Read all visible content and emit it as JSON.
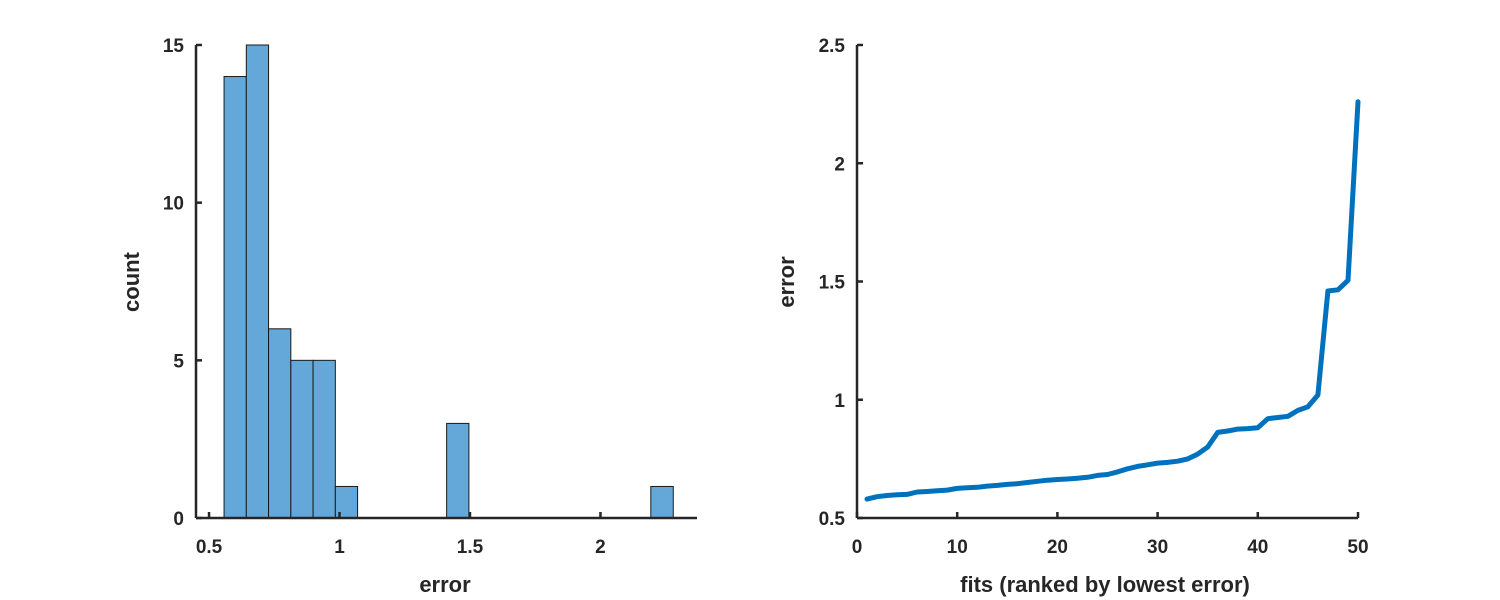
{
  "chart_data": [
    {
      "type": "bar",
      "subtype": "histogram",
      "xlabel": "error",
      "ylabel": "count",
      "xlim": [
        0.45,
        2.37
      ],
      "ylim": [
        0,
        15
      ],
      "xticks": [
        0.5,
        1,
        1.5,
        2
      ],
      "xtick_labels": [
        "0.5",
        "1",
        "1.5",
        "2"
      ],
      "yticks": [
        0,
        5,
        10,
        15
      ],
      "ytick_labels": [
        "0",
        "5",
        "10",
        "15"
      ],
      "bin_width": 0.0853,
      "bins": [
        {
          "start": 0.5575,
          "end": 0.6428,
          "count": 14
        },
        {
          "start": 0.6428,
          "end": 0.7281,
          "count": 15
        },
        {
          "start": 0.7281,
          "end": 0.8134,
          "count": 6
        },
        {
          "start": 0.8134,
          "end": 0.8987,
          "count": 5
        },
        {
          "start": 0.8987,
          "end": 0.984,
          "count": 5
        },
        {
          "start": 0.984,
          "end": 1.0693,
          "count": 1
        },
        {
          "start": 1.4105,
          "end": 1.4958,
          "count": 3
        },
        {
          "start": 2.193,
          "end": 2.279,
          "count": 1
        }
      ],
      "bar_color": "#63a8d8",
      "grid": false
    },
    {
      "type": "line",
      "xlabel": "fits (ranked by lowest error)",
      "ylabel": "error",
      "xlim": [
        0,
        50
      ],
      "ylim": [
        0.5,
        2.5
      ],
      "xticks": [
        0,
        10,
        20,
        30,
        40,
        50
      ],
      "xtick_labels": [
        "0",
        "10",
        "20",
        "30",
        "40",
        "50"
      ],
      "yticks": [
        0.5,
        1,
        1.5,
        2,
        2.5
      ],
      "ytick_labels": [
        "0.5",
        "1",
        "1.5",
        "2",
        "2.5"
      ],
      "series": [
        {
          "color": "#0072bd",
          "x": [
            1,
            2,
            3,
            4,
            5,
            6,
            7,
            8,
            9,
            10,
            11,
            12,
            13,
            14,
            15,
            16,
            17,
            18,
            19,
            20,
            21,
            22,
            23,
            24,
            25,
            26,
            27,
            28,
            29,
            30,
            31,
            32,
            33,
            34,
            35,
            36,
            37,
            38,
            39,
            40,
            41,
            42,
            43,
            44,
            45,
            46,
            47,
            48,
            49,
            50
          ],
          "y": [
            0.58,
            0.59,
            0.595,
            0.598,
            0.6,
            0.61,
            0.612,
            0.615,
            0.618,
            0.625,
            0.628,
            0.63,
            0.635,
            0.638,
            0.642,
            0.645,
            0.65,
            0.655,
            0.66,
            0.663,
            0.665,
            0.668,
            0.672,
            0.68,
            0.684,
            0.695,
            0.708,
            0.718,
            0.725,
            0.732,
            0.735,
            0.74,
            0.75,
            0.77,
            0.8,
            0.862,
            0.868,
            0.876,
            0.878,
            0.882,
            0.92,
            0.925,
            0.93,
            0.955,
            0.97,
            1.02,
            1.46,
            1.465,
            1.505,
            2.26
          ]
        }
      ],
      "grid": false
    }
  ]
}
